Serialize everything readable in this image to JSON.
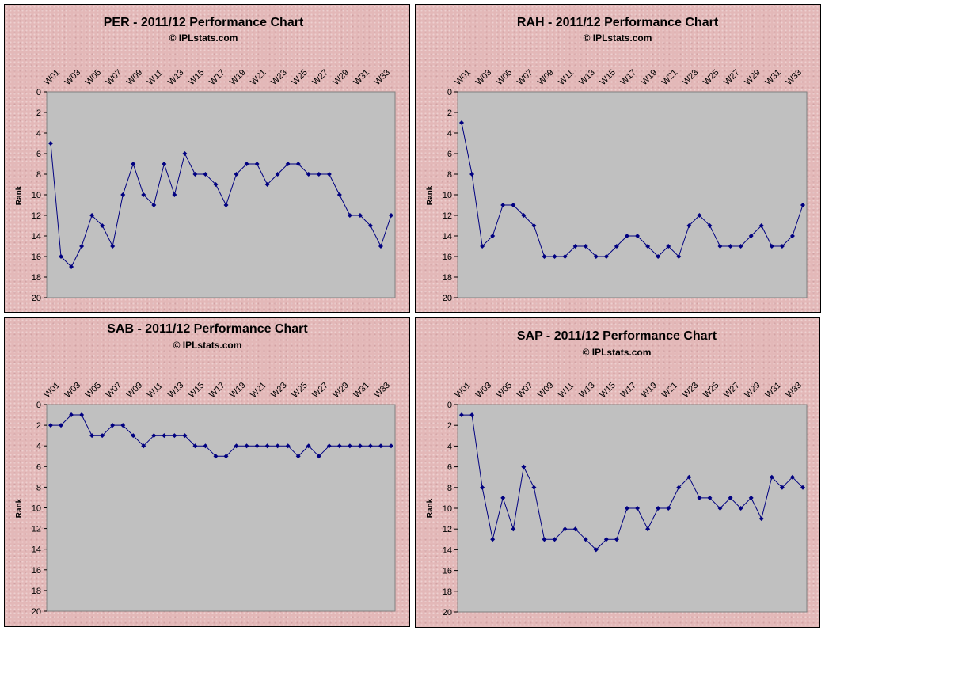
{
  "colors": {
    "background": "#e3b8b8",
    "plot_area": "#c0c0c0",
    "series": "#000080"
  },
  "chart_data": [
    {
      "type": "line",
      "title": "PER  - 2011/12 Performance Chart",
      "subtitle": "© IPLstats.com",
      "ylabel": "Rank",
      "ylim": [
        0,
        20
      ],
      "y_reversed": true,
      "y_ticks": [
        "0",
        "2",
        "4",
        "6",
        "8",
        "10",
        "12",
        "14",
        "16",
        "18",
        "20"
      ],
      "categories": [
        "W01",
        "W02",
        "W03",
        "W04",
        "W05",
        "W06",
        "W07",
        "W08",
        "W09",
        "W10",
        "W11",
        "W12",
        "W13",
        "W14",
        "W15",
        "W16",
        "W17",
        "W18",
        "W19",
        "W20",
        "W21",
        "W22",
        "W23",
        "W24",
        "W25",
        "W26",
        "W27",
        "W28",
        "W29",
        "W30",
        "W31",
        "W32",
        "W33",
        "W34"
      ],
      "category_labels": [
        "W01",
        "W03",
        "W05",
        "W07",
        "W09",
        "W11",
        "W13",
        "W15",
        "W17",
        "W19",
        "W21",
        "W23",
        "W25",
        "W27",
        "W29",
        "W31",
        "W33"
      ],
      "values": [
        5,
        16,
        17,
        15,
        12,
        13,
        15,
        10,
        7,
        10,
        11,
        7,
        10,
        6,
        8,
        8,
        9,
        11,
        8,
        7,
        7,
        9,
        8,
        7,
        7,
        8,
        8,
        8,
        10,
        12,
        12,
        13,
        15,
        12
      ]
    },
    {
      "type": "line",
      "title": "RAH  - 2011/12 Performance Chart",
      "subtitle": "© IPLstats.com",
      "ylabel": "Rank",
      "ylim": [
        0,
        20
      ],
      "y_reversed": true,
      "y_ticks": [
        "0",
        "2",
        "4",
        "6",
        "8",
        "10",
        "12",
        "14",
        "16",
        "18",
        "20"
      ],
      "categories": [
        "W01",
        "W02",
        "W03",
        "W04",
        "W05",
        "W06",
        "W07",
        "W08",
        "W09",
        "W10",
        "W11",
        "W12",
        "W13",
        "W14",
        "W15",
        "W16",
        "W17",
        "W18",
        "W19",
        "W20",
        "W21",
        "W22",
        "W23",
        "W24",
        "W25",
        "W26",
        "W27",
        "W28",
        "W29",
        "W30",
        "W31",
        "W32",
        "W33",
        "W34"
      ],
      "category_labels": [
        "W01",
        "W03",
        "W05",
        "W07",
        "W09",
        "W11",
        "W13",
        "W15",
        "W17",
        "W19",
        "W21",
        "W23",
        "W25",
        "W27",
        "W29",
        "W31",
        "W33"
      ],
      "values": [
        3,
        8,
        15,
        14,
        11,
        11,
        12,
        13,
        16,
        16,
        16,
        15,
        15,
        16,
        16,
        15,
        14,
        14,
        15,
        16,
        15,
        16,
        13,
        12,
        13,
        15,
        15,
        15,
        14,
        13,
        15,
        15,
        14,
        11
      ]
    },
    {
      "type": "line",
      "title": "SAB  - 2011/12 Performance Chart",
      "subtitle": "© IPLstats.com",
      "ylabel": "Rank",
      "ylim": [
        0,
        20
      ],
      "y_reversed": true,
      "y_ticks": [
        "0",
        "2",
        "4",
        "6",
        "8",
        "10",
        "12",
        "14",
        "16",
        "18",
        "20"
      ],
      "categories": [
        "W01",
        "W02",
        "W03",
        "W04",
        "W05",
        "W06",
        "W07",
        "W08",
        "W09",
        "W10",
        "W11",
        "W12",
        "W13",
        "W14",
        "W15",
        "W16",
        "W17",
        "W18",
        "W19",
        "W20",
        "W21",
        "W22",
        "W23",
        "W24",
        "W25",
        "W26",
        "W27",
        "W28",
        "W29",
        "W30",
        "W31",
        "W32",
        "W33",
        "W34"
      ],
      "category_labels": [
        "W01",
        "W03",
        "W05",
        "W07",
        "W09",
        "W11",
        "W13",
        "W15",
        "W17",
        "W19",
        "W21",
        "W23",
        "W25",
        "W27",
        "W29",
        "W31",
        "W33"
      ],
      "values": [
        2,
        2,
        1,
        1,
        3,
        3,
        2,
        2,
        3,
        4,
        3,
        3,
        3,
        3,
        4,
        4,
        5,
        5,
        4,
        4,
        4,
        4,
        4,
        4,
        5,
        4,
        5,
        4,
        4,
        4,
        4,
        4,
        4,
        4
      ]
    },
    {
      "type": "line",
      "title": "SAP  - 2011/12 Performance Chart",
      "subtitle": "© IPLstats.com",
      "ylabel": "Rank",
      "ylim": [
        0,
        20
      ],
      "y_reversed": true,
      "y_ticks": [
        "0",
        "2",
        "4",
        "6",
        "8",
        "10",
        "12",
        "14",
        "16",
        "18",
        "20"
      ],
      "categories": [
        "W01",
        "W02",
        "W03",
        "W04",
        "W05",
        "W06",
        "W07",
        "W08",
        "W09",
        "W10",
        "W11",
        "W12",
        "W13",
        "W14",
        "W15",
        "W16",
        "W17",
        "W18",
        "W19",
        "W20",
        "W21",
        "W22",
        "W23",
        "W24",
        "W25",
        "W26",
        "W27",
        "W28",
        "W29",
        "W30",
        "W31",
        "W32",
        "W33",
        "W34"
      ],
      "category_labels": [
        "W01",
        "W03",
        "W05",
        "W07",
        "W09",
        "W11",
        "W13",
        "W15",
        "W17",
        "W19",
        "W21",
        "W23",
        "W25",
        "W27",
        "W29",
        "W31",
        "W33"
      ],
      "values": [
        1,
        1,
        8,
        13,
        9,
        12,
        6,
        8,
        13,
        13,
        12,
        12,
        13,
        14,
        13,
        13,
        10,
        10,
        12,
        10,
        10,
        8,
        7,
        9,
        9,
        10,
        9,
        10,
        9,
        11,
        7,
        8,
        7,
        8
      ]
    }
  ]
}
